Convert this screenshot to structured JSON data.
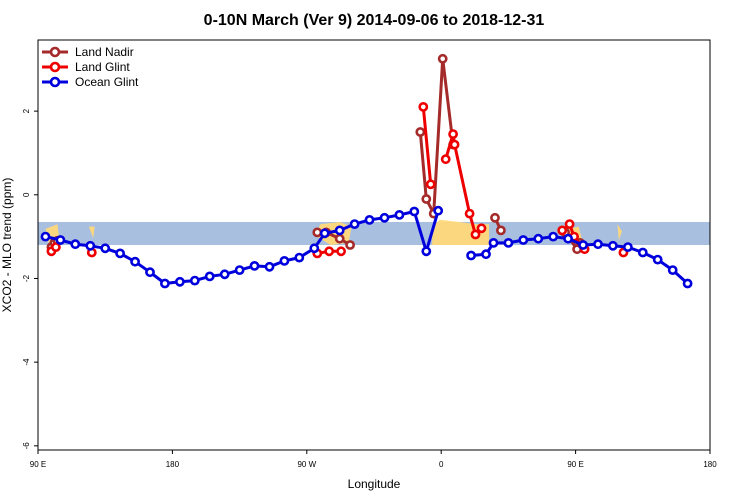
{
  "chart_data": {
    "type": "line",
    "title": "0-10N March (Ver 9)   2014-09-06 to 2018-12-31",
    "xlabel": "Longitude",
    "ylabel": "XCO2 - MLO trend (ppm)",
    "xlim": [
      90,
      540
    ],
    "ylim": [
      -6.1,
      3.7
    ],
    "x_ticks": [
      {
        "value": 90,
        "label": "90 E"
      },
      {
        "value": 180,
        "label": "180"
      },
      {
        "value": 270,
        "label": "90 W"
      },
      {
        "value": 360,
        "label": "0"
      },
      {
        "value": 450,
        "label": "90 E"
      },
      {
        "value": 540,
        "label": "180"
      }
    ],
    "y_ticks": [
      {
        "value": 2,
        "label": "2"
      },
      {
        "value": 0,
        "label": "0"
      },
      {
        "value": -2,
        "label": "-2"
      },
      {
        "value": -4,
        "label": "-4"
      },
      {
        "value": -6,
        "label": "-6"
      }
    ],
    "band": {
      "ymin": -1.2,
      "ymax": -0.65,
      "color": "#a9bfdf"
    },
    "land_color": "#ffd97a",
    "legend_position": "top-left",
    "series": [
      {
        "name": "Land Nadir",
        "color": "#a52a2a",
        "segments": [
          [
            [
              99,
              -1.25
            ],
            [
              101,
              -1.15
            ],
            [
              103,
              -1.1
            ]
          ],
          [
            [
              277,
              -0.9
            ],
            [
              283,
              -0.9
            ],
            [
              292,
              -1.05
            ],
            [
              299,
              -1.2
            ]
          ],
          [
            [
              346,
              1.5
            ],
            [
              350,
              -0.1
            ],
            [
              355,
              -0.45
            ],
            [
              361,
              3.25
            ],
            [
              368,
              1.2
            ]
          ],
          [
            [
              396,
              -0.55
            ],
            [
              400,
              -0.85
            ]
          ],
          [
            [
              443,
              -0.9
            ],
            [
              451,
              -1.3
            ],
            [
              453,
              -1.15
            ]
          ]
        ]
      },
      {
        "name": "Land Glint",
        "color": "#ee0000",
        "segments": [
          [
            [
              99,
              -1.35
            ],
            [
              102,
              -1.25
            ]
          ],
          [
            [
              126,
              -1.38
            ]
          ],
          [
            [
              277,
              -1.4
            ],
            [
              285,
              -1.35
            ],
            [
              293,
              -1.35
            ]
          ],
          [
            [
              348,
              2.1
            ],
            [
              353,
              0.25
            ]
          ],
          [
            [
              363,
              0.85
            ],
            [
              368,
              1.45
            ],
            [
              369,
              1.2
            ],
            [
              379,
              -0.45
            ],
            [
              383,
              -0.95
            ],
            [
              387,
              -0.8
            ]
          ],
          [
            [
              441,
              -0.85
            ],
            [
              446,
              -0.7
            ],
            [
              449,
              -1.0
            ],
            [
              456,
              -1.3
            ]
          ],
          [
            [
              482,
              -1.38
            ]
          ]
        ]
      },
      {
        "name": "Ocean Glint",
        "color": "#0000dd",
        "segments": [
          [
            [
              95,
              -1.0
            ],
            [
              105,
              -1.08
            ],
            [
              115,
              -1.18
            ],
            [
              125,
              -1.22
            ],
            [
              135,
              -1.28
            ],
            [
              145,
              -1.4
            ],
            [
              155,
              -1.6
            ],
            [
              165,
              -1.85
            ],
            [
              175,
              -2.12
            ],
            [
              185,
              -2.08
            ],
            [
              195,
              -2.05
            ],
            [
              205,
              -1.95
            ],
            [
              215,
              -1.9
            ],
            [
              225,
              -1.8
            ],
            [
              235,
              -1.7
            ],
            [
              245,
              -1.72
            ],
            [
              255,
              -1.58
            ],
            [
              265,
              -1.5
            ],
            [
              275,
              -1.28
            ],
            [
              282,
              -0.92
            ],
            [
              292,
              -0.85
            ],
            [
              302,
              -0.7
            ],
            [
              312,
              -0.6
            ],
            [
              322,
              -0.55
            ],
            [
              332,
              -0.48
            ],
            [
              342,
              -0.4
            ],
            [
              350,
              -1.35
            ],
            [
              358,
              -0.38
            ]
          ],
          [
            [
              380,
              -1.45
            ],
            [
              390,
              -1.42
            ],
            [
              395,
              -1.15
            ],
            [
              405,
              -1.15
            ],
            [
              415,
              -1.08
            ],
            [
              425,
              -1.05
            ],
            [
              435,
              -1.0
            ],
            [
              445,
              -1.05
            ],
            [
              455,
              -1.2
            ],
            [
              465,
              -1.18
            ],
            [
              475,
              -1.22
            ],
            [
              485,
              -1.25
            ],
            [
              495,
              -1.38
            ],
            [
              505,
              -1.55
            ],
            [
              515,
              -1.8
            ],
            [
              525,
              -2.12
            ]
          ]
        ]
      }
    ]
  }
}
